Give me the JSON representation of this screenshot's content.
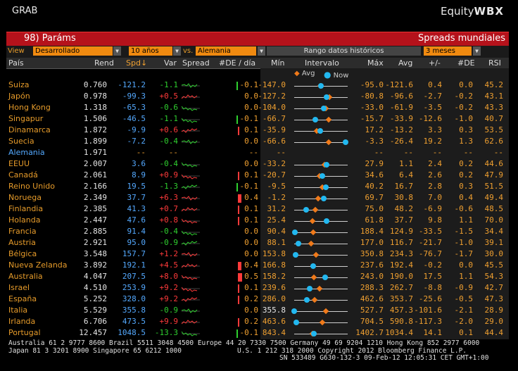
{
  "header": {
    "app": "GRAB",
    "brand_main": "Equity",
    "brand_bold": "WBX"
  },
  "titlebar": {
    "left": "98) Paráms",
    "right": "Spreads mundiales"
  },
  "controls": {
    "view_label": "View",
    "view_value": "Desarrollado",
    "tenor_value": "10 años",
    "vs_label": "vs.",
    "vs_value": "Alemania",
    "range_label": "Rango datos históricos",
    "period_value": "3 meses"
  },
  "columns": {
    "pais": "País",
    "rend": "Rend",
    "spd": "Spd↓",
    "var": "Var",
    "spread": "Spread",
    "de_dia": "#DE / día",
    "min": "Mín",
    "intervalo": "Intervalo",
    "max": "Máx",
    "avg": "Avg",
    "pm": "+/-",
    "de": "#DE",
    "rsi": "RSI"
  },
  "legend": {
    "avg": "Avg",
    "now": "Now"
  },
  "colors": {
    "orange": "#e69b2a",
    "blue": "#54a9ff",
    "green": "#2fd02f",
    "red": "#ff3a3a",
    "title_red": "#b5121b",
    "now_dot": "#22b8f0",
    "avg_dot": "#f07a1a"
  },
  "rows": [
    {
      "pais": "Suiza",
      "rend": "0.760",
      "spd": "-121.2",
      "var": "-1.1",
      "de_dia": "-0.1",
      "min": "-147.0",
      "max": "-95.0",
      "avg": "-121.6",
      "pm": "0.4",
      "de": "0.0",
      "rsi": "45.2",
      "avg_frac": 0.49,
      "now_frac": 0.5
    },
    {
      "pais": "Japón",
      "rend": "0.978",
      "spd": "-99.3",
      "var": "+0.5",
      "de_dia": "0.0",
      "min": "-127.2",
      "max": "-80.8",
      "avg": "-96.6",
      "pm": "-2.7",
      "de": "-0.2",
      "rsi": "43.1",
      "avg_frac": 0.66,
      "now_frac": 0.6
    },
    {
      "pais": "Hong Kong",
      "rend": "1.318",
      "spd": "-65.3",
      "var": "-0.6",
      "de_dia": "0.0",
      "min": "-104.0",
      "max": "-33.0",
      "avg": "-61.9",
      "pm": "-3.5",
      "de": "-0.2",
      "rsi": "43.3",
      "avg_frac": 0.59,
      "now_frac": 0.55
    },
    {
      "pais": "Singapur",
      "rend": "1.506",
      "spd": "-46.5",
      "var": "-1.1",
      "de_dia": "-0.1",
      "min": "-66.7",
      "max": "-15.7",
      "avg": "-33.9",
      "pm": "-12.6",
      "de": "-1.0",
      "rsi": "40.7",
      "avg_frac": 0.64,
      "now_frac": 0.4
    },
    {
      "pais": "Dinamarca",
      "rend": "1.872",
      "spd": "-9.9",
      "var": "+0.6",
      "de_dia": "0.1",
      "min": "-35.9",
      "max": "17.2",
      "avg": "-13.2",
      "pm": "3.3",
      "de": "0.3",
      "rsi": "53.5",
      "avg_frac": 0.42,
      "now_frac": 0.49
    },
    {
      "pais": "Suecia",
      "rend": "1.899",
      "spd": "-7.2",
      "var": "-0.4",
      "de_dia": "0.0",
      "min": "-66.6",
      "max": "-3.3",
      "avg": "-26.4",
      "pm": "19.2",
      "de": "1.3",
      "rsi": "62.6",
      "avg_frac": 0.64,
      "now_frac": 0.96
    },
    {
      "pais": "Alemania",
      "rend": "1.971",
      "spd": "--",
      "var": "--",
      "de_dia": "--",
      "min": "--",
      "max": "--",
      "avg": "--",
      "pm": "--",
      "de": "--",
      "rsi": "--",
      "is_ref": true
    },
    {
      "pais": "EEUU",
      "rend": "2.007",
      "spd": "3.6",
      "var": "-0.4",
      "de_dia": "0.0",
      "min": "-33.2",
      "max": "27.9",
      "avg": "1.1",
      "pm": "2.4",
      "de": "0.2",
      "rsi": "44.6",
      "avg_frac": 0.57,
      "now_frac": 0.6
    },
    {
      "pais": "Canadá",
      "rend": "2.061",
      "spd": "8.9",
      "var": "+0.9",
      "de_dia": "0.1",
      "min": "-20.7",
      "max": "34.6",
      "avg": "6.4",
      "pm": "2.6",
      "de": "0.2",
      "rsi": "47.9",
      "avg_frac": 0.48,
      "now_frac": 0.53
    },
    {
      "pais": "Reino Unido",
      "rend": "2.166",
      "spd": "19.5",
      "var": "-1.3",
      "de_dia": "-0.1",
      "min": "-9.5",
      "max": "40.2",
      "avg": "16.7",
      "pm": "2.8",
      "de": "0.3",
      "rsi": "51.5",
      "avg_frac": 0.53,
      "now_frac": 0.59
    },
    {
      "pais": "Noruega",
      "rend": "2.349",
      "spd": "37.7",
      "var": "+6.3",
      "de_dia": "0.4",
      "min": "-1.2",
      "max": "69.7",
      "avg": "30.8",
      "pm": "7.0",
      "de": "0.4",
      "rsi": "49.4",
      "avg_frac": 0.45,
      "now_frac": 0.55
    },
    {
      "pais": "Finlandia",
      "rend": "2.385",
      "spd": "41.3",
      "var": "+0.7",
      "de_dia": "0.1",
      "min": "31.2",
      "max": "75.0",
      "avg": "48.2",
      "pm": "-6.9",
      "de": "-0.6",
      "rsi": "48.5",
      "avg_frac": 0.39,
      "now_frac": 0.23
    },
    {
      "pais": "Holanda",
      "rend": "2.447",
      "spd": "47.6",
      "var": "+0.8",
      "de_dia": "0.1",
      "min": "25.4",
      "max": "61.8",
      "avg": "37.7",
      "pm": "9.8",
      "de": "1.1",
      "rsi": "70.0",
      "avg_frac": 0.34,
      "now_frac": 0.6
    },
    {
      "pais": "Francia",
      "rend": "2.885",
      "spd": "91.4",
      "var": "-0.4",
      "de_dia": "0.0",
      "min": "90.4",
      "max": "188.4",
      "avg": "124.9",
      "pm": "-33.5",
      "de": "-1.5",
      "rsi": "34.4",
      "avg_frac": 0.35,
      "now_frac": 0.01
    },
    {
      "pais": "Austria",
      "rend": "2.921",
      "spd": "95.0",
      "var": "-0.9",
      "de_dia": "0.0",
      "min": "88.1",
      "max": "177.0",
      "avg": "116.7",
      "pm": "-21.7",
      "de": "-1.0",
      "rsi": "39.1",
      "avg_frac": 0.32,
      "now_frac": 0.08
    },
    {
      "pais": "Bélgica",
      "rend": "3.548",
      "spd": "157.7",
      "var": "+1.2",
      "de_dia": "0.0",
      "min": "153.8",
      "max": "350.8",
      "avg": "234.3",
      "pm": "-76.7",
      "de": "-1.7",
      "rsi": "30.0",
      "avg_frac": 0.41,
      "now_frac": 0.02
    },
    {
      "pais": "Nueva Zelanda",
      "rend": "3.892",
      "spd": "192.1",
      "var": "+4.5",
      "de_dia": "0.4",
      "min": "166.8",
      "max": "237.6",
      "avg": "192.4",
      "pm": "-0.2",
      "de": "0.0",
      "rsi": "45.5",
      "avg_frac": 0.36,
      "now_frac": 0.36
    },
    {
      "pais": "Australia",
      "rend": "4.047",
      "spd": "207.5",
      "var": "+8.0",
      "de_dia": "0.5",
      "min": "158.2",
      "max": "243.0",
      "avg": "190.0",
      "pm": "17.5",
      "de": "1.1",
      "rsi": "54.3",
      "avg_frac": 0.37,
      "now_frac": 0.58
    },
    {
      "pais": "Israel",
      "rend": "4.510",
      "spd": "253.9",
      "var": "+9.2",
      "de_dia": "0.1",
      "min": "239.6",
      "max": "288.3",
      "avg": "262.7",
      "pm": "-8.8",
      "de": "-0.9",
      "rsi": "42.7",
      "avg_frac": 0.47,
      "now_frac": 0.29
    },
    {
      "pais": "España",
      "rend": "5.252",
      "spd": "328.0",
      "var": "+9.2",
      "de_dia": "0.2",
      "min": "286.0",
      "max": "462.6",
      "avg": "353.7",
      "pm": "-25.6",
      "de": "-0.5",
      "rsi": "47.3",
      "avg_frac": 0.38,
      "now_frac": 0.24
    },
    {
      "pais": "Italia",
      "rend": "5.529",
      "spd": "355.8",
      "var": "-0.9",
      "de_dia": "0.0",
      "min": "355.8",
      "max": "527.7",
      "avg": "457.3",
      "pm": "-101.6",
      "de": "-2.1",
      "rsi": "28.9",
      "avg_frac": 0.59,
      "now_frac": 0.0,
      "min_white": true
    },
    {
      "pais": "Irlanda",
      "rend": "6.706",
      "spd": "473.5",
      "var": "+9.9",
      "de_dia": "0.2",
      "min": "463.6",
      "max": "704.5",
      "avg": "590.8",
      "pm": "-117.3",
      "de": "-2.0",
      "rsi": "29.0",
      "avg_frac": 0.53,
      "now_frac": 0.04
    },
    {
      "pais": "Portugal",
      "rend": "12.457",
      "spd": "1048.5",
      "var": "-13.3",
      "de_dia": "-0.1",
      "min": "843.4",
      "max": "1402.7",
      "avg": "1034.4",
      "pm": "14.1",
      "de": "0.1",
      "rsi": "44.4",
      "avg_frac": 0.34,
      "now_frac": 0.37
    }
  ],
  "footer": {
    "line1": "Australia 61 2 9777 8600 Brazil 5511 3048 4500 Europe 44 20 7330 7500 Germany 49 69 9204 1210 Hong Kong 852 2977 6000",
    "line2_left": "Japan 81 3 3201 8900        Singapore 65 6212 1000",
    "line2_right": "U.S. 1 212 318 2000        Copyright 2012 Bloomberg Finance L.P.",
    "line3": "SN 533489 G630-132-3 09-Feb-12 12:05:31 CET  GMT+1:00"
  }
}
